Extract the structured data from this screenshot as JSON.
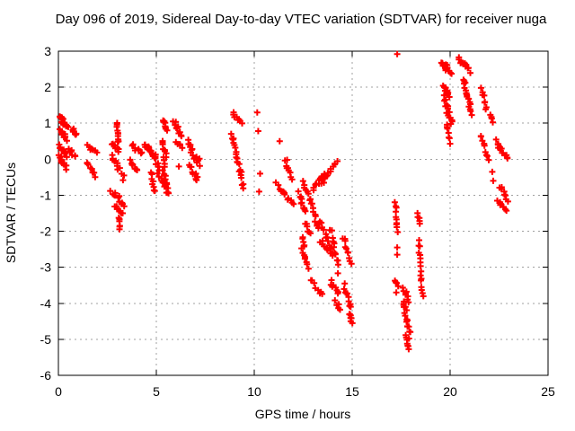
{
  "colors": {
    "background": "#ffffff",
    "axis": "#000000",
    "grid": "#a0a0a0",
    "marker": "#ff0000",
    "text": "#000000"
  },
  "chart_data": {
    "type": "scatter",
    "title": "Day 096 of 2019, Sidereal Day-to-day VTEC variation (SDTVAR) for receiver nuga",
    "xlabel": "GPS time / hours",
    "ylabel": "SDTVAR / TECUs",
    "xlim": [
      0,
      25
    ],
    "ylim": [
      -6,
      3
    ],
    "xticks": [
      0,
      5,
      10,
      15,
      20,
      25
    ],
    "yticks": [
      3,
      2,
      1,
      0,
      -1,
      -2,
      -3,
      -4,
      -5,
      -6
    ],
    "grid": true,
    "legend": "none",
    "marker": {
      "shape": "plus",
      "size": 7,
      "color": "#ff0000"
    },
    "points": [
      [
        17.3,
        2.92
      ],
      [
        10.15,
        1.3
      ],
      [
        10.2,
        0.78
      ],
      [
        11.3,
        0.5
      ],
      [
        10.3,
        -0.4
      ],
      [
        10.25,
        -0.9
      ],
      [
        6.15,
        -0.2
      ],
      [
        3.35,
        -0.45
      ],
      [
        3.3,
        -0.58
      ],
      [
        17.3,
        -2.45
      ],
      [
        17.3,
        -2.65
      ],
      [
        17.25,
        -3.7
      ],
      [
        22.15,
        -0.35
      ],
      [
        22.2,
        -0.6
      ]
    ],
    "clusters_format": "[x_start, y_start, x_end, y_end, n_points, x_jitter, y_jitter]",
    "clusters": [
      [
        0.08,
        1.15,
        0.45,
        0.88,
        16,
        0.07,
        0.07
      ],
      [
        0.1,
        0.85,
        0.42,
        0.55,
        12,
        0.06,
        0.06
      ],
      [
        0.7,
        0.85,
        0.92,
        0.65,
        7,
        0.05,
        0.05
      ],
      [
        0.05,
        0.35,
        0.45,
        0.1,
        12,
        0.06,
        0.06
      ],
      [
        0.5,
        0.3,
        0.85,
        0.1,
        8,
        0.06,
        0.05
      ],
      [
        0.03,
        0.1,
        0.4,
        -0.25,
        12,
        0.06,
        0.06
      ],
      [
        1.5,
        0.35,
        1.95,
        0.18,
        7,
        0.05,
        0.05
      ],
      [
        1.45,
        -0.1,
        1.85,
        -0.45,
        8,
        0.06,
        0.06
      ],
      [
        3.0,
        1.0,
        3.05,
        0.45,
        10,
        0.03,
        0.04
      ],
      [
        2.75,
        0.45,
        3.1,
        0.25,
        7,
        0.05,
        0.05
      ],
      [
        2.7,
        0.1,
        3.2,
        -0.35,
        10,
        0.07,
        0.06
      ],
      [
        2.7,
        -0.9,
        3.4,
        -1.25,
        12,
        0.08,
        0.07
      ],
      [
        2.85,
        -1.3,
        3.3,
        -1.55,
        8,
        0.06,
        0.05
      ],
      [
        3.1,
        -1.6,
        3.15,
        -1.95,
        6,
        0.03,
        0.04
      ],
      [
        3.75,
        0.4,
        4.25,
        0.15,
        8,
        0.06,
        0.05
      ],
      [
        3.65,
        -0.05,
        4.05,
        -0.35,
        8,
        0.06,
        0.05
      ],
      [
        4.4,
        0.45,
        4.95,
        0.05,
        14,
        0.06,
        0.06
      ],
      [
        4.55,
        0.4,
        5.25,
        -0.3,
        16,
        0.08,
        0.08
      ],
      [
        4.75,
        -0.35,
        4.9,
        -0.9,
        8,
        0.04,
        0.05
      ],
      [
        5.1,
        -0.45,
        5.65,
        -1.0,
        10,
        0.06,
        0.06
      ],
      [
        5.3,
        1.1,
        5.55,
        0.8,
        8,
        0.05,
        0.05
      ],
      [
        5.3,
        0.5,
        5.5,
        0.1,
        8,
        0.05,
        0.05
      ],
      [
        5.35,
        0.0,
        5.55,
        -0.8,
        10,
        0.05,
        0.07
      ],
      [
        5.9,
        1.05,
        6.25,
        0.6,
        10,
        0.06,
        0.06
      ],
      [
        6.0,
        0.45,
        6.3,
        0.35,
        5,
        0.05,
        0.04
      ],
      [
        6.6,
        0.45,
        7.2,
        -0.1,
        16,
        0.08,
        0.09
      ],
      [
        6.7,
        -0.15,
        7.1,
        -0.6,
        10,
        0.06,
        0.06
      ],
      [
        8.9,
        1.3,
        9.35,
        1.0,
        8,
        0.05,
        0.05
      ],
      [
        8.85,
        0.7,
        9.45,
        -0.75,
        22,
        0.05,
        0.09
      ],
      [
        11.6,
        0.0,
        11.9,
        -0.55,
        9,
        0.05,
        0.06
      ],
      [
        11.15,
        -0.7,
        12.0,
        -1.25,
        12,
        0.07,
        0.07
      ],
      [
        12.3,
        -0.95,
        12.6,
        -1.5,
        10,
        0.05,
        0.06
      ],
      [
        12.45,
        -0.6,
        12.75,
        -1.0,
        6,
        0.05,
        0.05
      ],
      [
        12.62,
        -1.75,
        12.88,
        -2.1,
        6,
        0.05,
        0.05
      ],
      [
        12.45,
        -2.15,
        12.55,
        -2.45,
        5,
        0.03,
        0.04
      ],
      [
        12.45,
        -2.5,
        12.75,
        -3.0,
        8,
        0.04,
        0.05
      ],
      [
        12.85,
        -1.05,
        13.25,
        -1.95,
        12,
        0.06,
        0.07
      ],
      [
        13.3,
        -1.7,
        13.85,
        -2.35,
        12,
        0.06,
        0.06
      ],
      [
        13.0,
        -0.8,
        13.6,
        -0.42,
        12,
        0.06,
        0.06
      ],
      [
        13.45,
        -0.65,
        14.2,
        -0.05,
        12,
        0.05,
        0.06
      ],
      [
        13.4,
        -2.3,
        14.1,
        -2.65,
        12,
        0.07,
        0.07
      ],
      [
        13.9,
        -1.95,
        14.3,
        -3.1,
        12,
        0.05,
        0.08
      ],
      [
        12.9,
        -3.35,
        13.5,
        -3.8,
        8,
        0.06,
        0.06
      ],
      [
        13.9,
        -3.4,
        14.3,
        -3.75,
        8,
        0.06,
        0.06
      ],
      [
        14.15,
        -3.95,
        14.4,
        -4.2,
        5,
        0.05,
        0.05
      ],
      [
        14.55,
        -2.15,
        14.95,
        -2.85,
        10,
        0.04,
        0.06
      ],
      [
        14.6,
        -3.5,
        14.95,
        -4.3,
        12,
        0.06,
        0.08
      ],
      [
        14.85,
        -4.3,
        15.0,
        -4.6,
        5,
        0.04,
        0.05
      ],
      [
        17.2,
        -1.2,
        17.25,
        -1.45,
        4,
        0.03,
        0.03
      ],
      [
        17.25,
        -1.6,
        17.3,
        -2.0,
        6,
        0.03,
        0.04
      ],
      [
        17.2,
        -3.35,
        17.35,
        -3.5,
        4,
        0.04,
        0.03
      ],
      [
        17.6,
        -3.55,
        17.9,
        -3.95,
        8,
        0.05,
        0.06
      ],
      [
        17.6,
        -3.9,
        17.95,
        -4.9,
        18,
        0.06,
        0.09
      ],
      [
        17.72,
        -4.9,
        17.85,
        -5.3,
        7,
        0.04,
        0.06
      ],
      [
        18.35,
        -1.5,
        18.45,
        -1.8,
        5,
        0.03,
        0.04
      ],
      [
        18.4,
        -2.25,
        18.6,
        -3.85,
        16,
        0.04,
        0.06
      ],
      [
        19.55,
        2.7,
        19.8,
        2.52,
        7,
        0.05,
        0.05
      ],
      [
        19.8,
        2.62,
        20.05,
        2.35,
        7,
        0.05,
        0.05
      ],
      [
        19.7,
        2.0,
        19.95,
        1.73,
        10,
        0.06,
        0.06
      ],
      [
        19.65,
        1.72,
        20.08,
        1.0,
        16,
        0.07,
        0.08
      ],
      [
        19.85,
        1.0,
        20.0,
        0.45,
        7,
        0.04,
        0.05
      ],
      [
        20.45,
        2.8,
        21.0,
        2.45,
        12,
        0.07,
        0.06
      ],
      [
        20.7,
        2.2,
        21.05,
        1.3,
        18,
        0.06,
        0.09
      ],
      [
        21.6,
        1.95,
        21.85,
        1.4,
        8,
        0.04,
        0.06
      ],
      [
        22.05,
        1.25,
        22.2,
        1.05,
        4,
        0.04,
        0.04
      ],
      [
        21.55,
        0.7,
        21.95,
        -0.05,
        9,
        0.04,
        0.06
      ],
      [
        22.35,
        0.5,
        22.9,
        0.05,
        14,
        0.07,
        0.06
      ],
      [
        22.55,
        -0.75,
        22.95,
        -1.15,
        8,
        0.05,
        0.05
      ],
      [
        22.45,
        -1.15,
        22.85,
        -1.45,
        8,
        0.05,
        0.05
      ]
    ]
  }
}
